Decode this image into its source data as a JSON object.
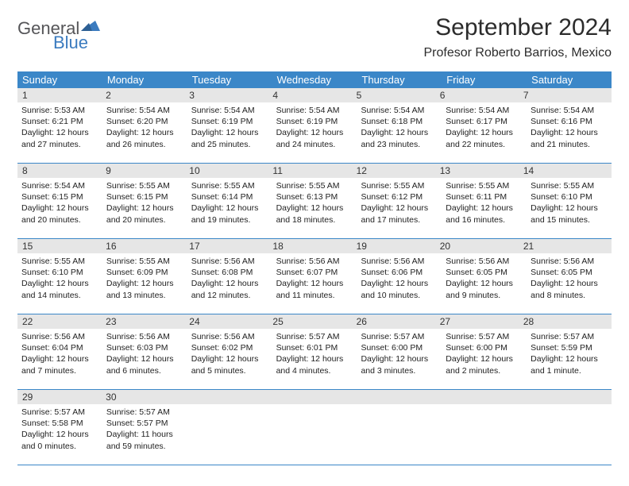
{
  "logo": {
    "main": "General",
    "sub": "Blue"
  },
  "title": "September 2024",
  "location": "Profesor Roberto Barrios, Mexico",
  "colors": {
    "header_bg": "#3b87c8",
    "header_text": "#ffffff",
    "daynum_bg": "#e6e6e6",
    "row_border": "#3b87c8",
    "logo_gray": "#555558",
    "logo_blue": "#3b7bbf"
  },
  "typography": {
    "title_fontsize": 30,
    "location_fontsize": 16,
    "dayhead_fontsize": 13,
    "daynum_fontsize": 12,
    "body_fontsize": 10.5
  },
  "day_headers": [
    "Sunday",
    "Monday",
    "Tuesday",
    "Wednesday",
    "Thursday",
    "Friday",
    "Saturday"
  ],
  "weeks": [
    [
      {
        "n": "1",
        "sr": "Sunrise: 5:53 AM",
        "ss": "Sunset: 6:21 PM",
        "d1": "Daylight: 12 hours",
        "d2": "and 27 minutes."
      },
      {
        "n": "2",
        "sr": "Sunrise: 5:54 AM",
        "ss": "Sunset: 6:20 PM",
        "d1": "Daylight: 12 hours",
        "d2": "and 26 minutes."
      },
      {
        "n": "3",
        "sr": "Sunrise: 5:54 AM",
        "ss": "Sunset: 6:19 PM",
        "d1": "Daylight: 12 hours",
        "d2": "and 25 minutes."
      },
      {
        "n": "4",
        "sr": "Sunrise: 5:54 AM",
        "ss": "Sunset: 6:19 PM",
        "d1": "Daylight: 12 hours",
        "d2": "and 24 minutes."
      },
      {
        "n": "5",
        "sr": "Sunrise: 5:54 AM",
        "ss": "Sunset: 6:18 PM",
        "d1": "Daylight: 12 hours",
        "d2": "and 23 minutes."
      },
      {
        "n": "6",
        "sr": "Sunrise: 5:54 AM",
        "ss": "Sunset: 6:17 PM",
        "d1": "Daylight: 12 hours",
        "d2": "and 22 minutes."
      },
      {
        "n": "7",
        "sr": "Sunrise: 5:54 AM",
        "ss": "Sunset: 6:16 PM",
        "d1": "Daylight: 12 hours",
        "d2": "and 21 minutes."
      }
    ],
    [
      {
        "n": "8",
        "sr": "Sunrise: 5:54 AM",
        "ss": "Sunset: 6:15 PM",
        "d1": "Daylight: 12 hours",
        "d2": "and 20 minutes."
      },
      {
        "n": "9",
        "sr": "Sunrise: 5:55 AM",
        "ss": "Sunset: 6:15 PM",
        "d1": "Daylight: 12 hours",
        "d2": "and 20 minutes."
      },
      {
        "n": "10",
        "sr": "Sunrise: 5:55 AM",
        "ss": "Sunset: 6:14 PM",
        "d1": "Daylight: 12 hours",
        "d2": "and 19 minutes."
      },
      {
        "n": "11",
        "sr": "Sunrise: 5:55 AM",
        "ss": "Sunset: 6:13 PM",
        "d1": "Daylight: 12 hours",
        "d2": "and 18 minutes."
      },
      {
        "n": "12",
        "sr": "Sunrise: 5:55 AM",
        "ss": "Sunset: 6:12 PM",
        "d1": "Daylight: 12 hours",
        "d2": "and 17 minutes."
      },
      {
        "n": "13",
        "sr": "Sunrise: 5:55 AM",
        "ss": "Sunset: 6:11 PM",
        "d1": "Daylight: 12 hours",
        "d2": "and 16 minutes."
      },
      {
        "n": "14",
        "sr": "Sunrise: 5:55 AM",
        "ss": "Sunset: 6:10 PM",
        "d1": "Daylight: 12 hours",
        "d2": "and 15 minutes."
      }
    ],
    [
      {
        "n": "15",
        "sr": "Sunrise: 5:55 AM",
        "ss": "Sunset: 6:10 PM",
        "d1": "Daylight: 12 hours",
        "d2": "and 14 minutes."
      },
      {
        "n": "16",
        "sr": "Sunrise: 5:55 AM",
        "ss": "Sunset: 6:09 PM",
        "d1": "Daylight: 12 hours",
        "d2": "and 13 minutes."
      },
      {
        "n": "17",
        "sr": "Sunrise: 5:56 AM",
        "ss": "Sunset: 6:08 PM",
        "d1": "Daylight: 12 hours",
        "d2": "and 12 minutes."
      },
      {
        "n": "18",
        "sr": "Sunrise: 5:56 AM",
        "ss": "Sunset: 6:07 PM",
        "d1": "Daylight: 12 hours",
        "d2": "and 11 minutes."
      },
      {
        "n": "19",
        "sr": "Sunrise: 5:56 AM",
        "ss": "Sunset: 6:06 PM",
        "d1": "Daylight: 12 hours",
        "d2": "and 10 minutes."
      },
      {
        "n": "20",
        "sr": "Sunrise: 5:56 AM",
        "ss": "Sunset: 6:05 PM",
        "d1": "Daylight: 12 hours",
        "d2": "and 9 minutes."
      },
      {
        "n": "21",
        "sr": "Sunrise: 5:56 AM",
        "ss": "Sunset: 6:05 PM",
        "d1": "Daylight: 12 hours",
        "d2": "and 8 minutes."
      }
    ],
    [
      {
        "n": "22",
        "sr": "Sunrise: 5:56 AM",
        "ss": "Sunset: 6:04 PM",
        "d1": "Daylight: 12 hours",
        "d2": "and 7 minutes."
      },
      {
        "n": "23",
        "sr": "Sunrise: 5:56 AM",
        "ss": "Sunset: 6:03 PM",
        "d1": "Daylight: 12 hours",
        "d2": "and 6 minutes."
      },
      {
        "n": "24",
        "sr": "Sunrise: 5:56 AM",
        "ss": "Sunset: 6:02 PM",
        "d1": "Daylight: 12 hours",
        "d2": "and 5 minutes."
      },
      {
        "n": "25",
        "sr": "Sunrise: 5:57 AM",
        "ss": "Sunset: 6:01 PM",
        "d1": "Daylight: 12 hours",
        "d2": "and 4 minutes."
      },
      {
        "n": "26",
        "sr": "Sunrise: 5:57 AM",
        "ss": "Sunset: 6:00 PM",
        "d1": "Daylight: 12 hours",
        "d2": "and 3 minutes."
      },
      {
        "n": "27",
        "sr": "Sunrise: 5:57 AM",
        "ss": "Sunset: 6:00 PM",
        "d1": "Daylight: 12 hours",
        "d2": "and 2 minutes."
      },
      {
        "n": "28",
        "sr": "Sunrise: 5:57 AM",
        "ss": "Sunset: 5:59 PM",
        "d1": "Daylight: 12 hours",
        "d2": "and 1 minute."
      }
    ],
    [
      {
        "n": "29",
        "sr": "Sunrise: 5:57 AM",
        "ss": "Sunset: 5:58 PM",
        "d1": "Daylight: 12 hours",
        "d2": "and 0 minutes."
      },
      {
        "n": "30",
        "sr": "Sunrise: 5:57 AM",
        "ss": "Sunset: 5:57 PM",
        "d1": "Daylight: 11 hours",
        "d2": "and 59 minutes."
      },
      {
        "n": "",
        "sr": "",
        "ss": "",
        "d1": "",
        "d2": ""
      },
      {
        "n": "",
        "sr": "",
        "ss": "",
        "d1": "",
        "d2": ""
      },
      {
        "n": "",
        "sr": "",
        "ss": "",
        "d1": "",
        "d2": ""
      },
      {
        "n": "",
        "sr": "",
        "ss": "",
        "d1": "",
        "d2": ""
      },
      {
        "n": "",
        "sr": "",
        "ss": "",
        "d1": "",
        "d2": ""
      }
    ]
  ]
}
